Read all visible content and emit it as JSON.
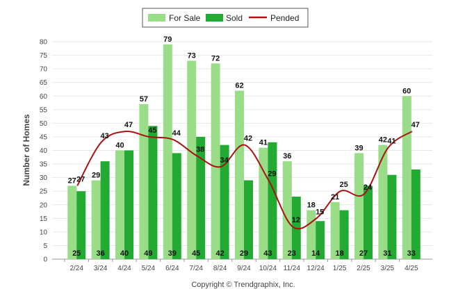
{
  "chart_data": {
    "type": "bar",
    "categories": [
      "2/24",
      "3/24",
      "4/24",
      "5/24",
      "6/24",
      "7/24",
      "8/24",
      "9/24",
      "10/24",
      "11/24",
      "12/24",
      "1/25",
      "2/25",
      "3/25",
      "4/25"
    ],
    "series": [
      {
        "name": "For Sale",
        "type": "bar",
        "color": "#99dd88",
        "values": [
          27,
          29,
          40,
          57,
          79,
          73,
          72,
          62,
          41,
          36,
          18,
          21,
          39,
          42,
          60
        ]
      },
      {
        "name": "Sold",
        "type": "bar",
        "color": "#22aa33",
        "values": [
          25,
          36,
          40,
          49,
          39,
          45,
          42,
          29,
          43,
          23,
          14,
          18,
          27,
          31,
          33
        ]
      },
      {
        "name": "Pended",
        "type": "line",
        "color": "#aa1111",
        "values": [
          27,
          43,
          47,
          45,
          44,
          38,
          34,
          42,
          29,
          12,
          15,
          25,
          24,
          41,
          47
        ]
      }
    ],
    "xlabel": "",
    "ylabel": "Number of Homes",
    "ylim": [
      0,
      80
    ],
    "yticks": [
      0,
      5,
      10,
      15,
      20,
      25,
      30,
      35,
      40,
      45,
      50,
      55,
      60,
      65,
      70,
      75,
      80
    ],
    "grid": true,
    "legend": "top-center"
  },
  "footer": "Copyright © Trendgraphix, Inc."
}
